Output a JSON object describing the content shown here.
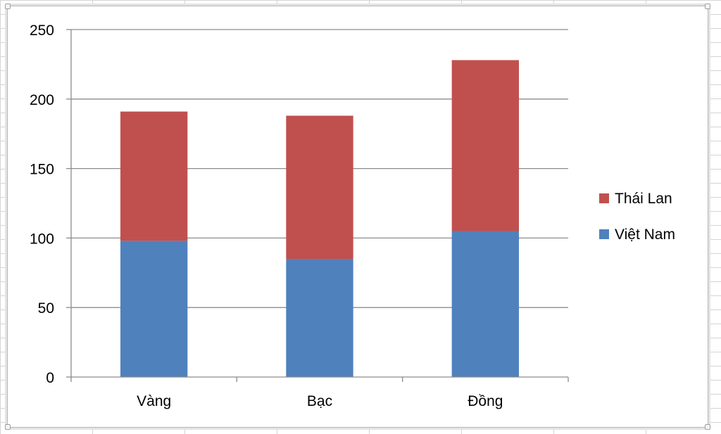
{
  "chart_data": {
    "type": "bar",
    "stacked": true,
    "categories": [
      "Vàng",
      "Bạc",
      "Đồng"
    ],
    "series": [
      {
        "name": "Việt Nam",
        "color": "#4f81bd",
        "values": [
          98,
          85,
          105
        ]
      },
      {
        "name": "Thái Lan",
        "color": "#c0504d",
        "values": [
          93,
          103,
          123
        ]
      }
    ],
    "ylim": [
      0,
      250
    ],
    "yticks": [
      0,
      50,
      100,
      150,
      200,
      250
    ],
    "grid": true,
    "legend_position": "right"
  }
}
